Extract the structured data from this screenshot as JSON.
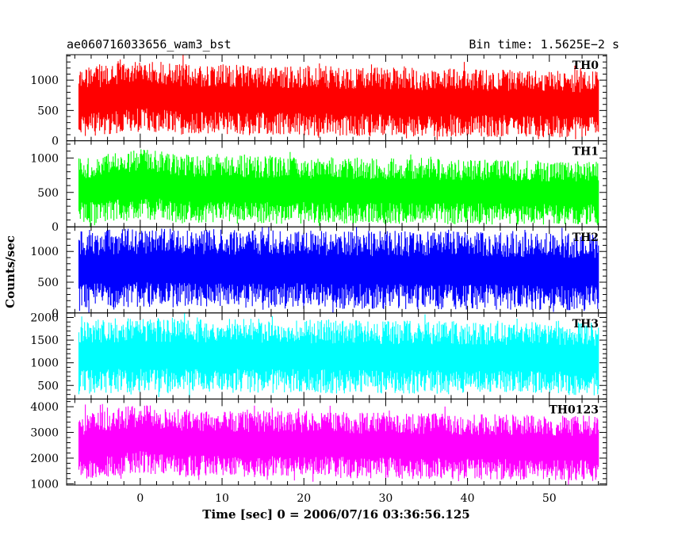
{
  "chart_data": {
    "type": "line",
    "title": "ae060716033656_wam3_bst",
    "subtitle": "Bin time: 1.5625E−2 s",
    "xlabel": "Time [sec] 0 = 2006/07/16 03:36:56.125",
    "ylabel": "Counts/sec",
    "xlim": [
      -9,
      57
    ],
    "x_ticks": [
      0,
      10,
      20,
      30,
      40,
      50
    ],
    "x_data_range": [
      -7.5,
      56
    ],
    "grid": false,
    "legend": "none",
    "panels": [
      {
        "name": "TH0",
        "color": "#ff0000",
        "ylim": [
          0,
          1420
        ],
        "y_ticks": [
          0,
          500,
          1000
        ],
        "profile": [
          {
            "x": -7.5,
            "low": 60,
            "high": 1200
          },
          {
            "x": 0,
            "low": 150,
            "high": 1380
          },
          {
            "x": 5,
            "low": 100,
            "high": 1280
          },
          {
            "x": 56,
            "low": 50,
            "high": 1150
          }
        ]
      },
      {
        "name": "TH1",
        "color": "#00ff00",
        "ylim": [
          0,
          1250
        ],
        "y_ticks": [
          0,
          500,
          1000
        ],
        "profile": [
          {
            "x": -7.5,
            "low": 40,
            "high": 1000
          },
          {
            "x": 0,
            "low": 100,
            "high": 1150
          },
          {
            "x": 5,
            "low": 50,
            "high": 1050
          },
          {
            "x": 56,
            "low": 30,
            "high": 950
          }
        ]
      },
      {
        "name": "TH2",
        "color": "#0000ff",
        "ylim": [
          0,
          1400
        ],
        "y_ticks": [
          0,
          500,
          1000
        ],
        "profile": [
          {
            "x": -7.5,
            "low": 50,
            "high": 1350
          },
          {
            "x": 0,
            "low": 80,
            "high": 1380
          },
          {
            "x": 56,
            "low": 40,
            "high": 1300
          }
        ]
      },
      {
        "name": "TH3",
        "color": "#00ffff",
        "ylim": [
          200,
          2100
        ],
        "y_ticks": [
          500,
          1000,
          1500,
          2000
        ],
        "profile": [
          {
            "x": -7.5,
            "low": 300,
            "high": 1950
          },
          {
            "x": 0,
            "low": 350,
            "high": 2000
          },
          {
            "x": 56,
            "low": 280,
            "high": 1900
          }
        ]
      },
      {
        "name": "TH0123",
        "color": "#ff00ff",
        "ylim": [
          950,
          4300
        ],
        "y_ticks": [
          1000,
          2000,
          3000,
          4000
        ],
        "profile": [
          {
            "x": -7.5,
            "low": 1150,
            "high": 3700
          },
          {
            "x": 0,
            "low": 1400,
            "high": 4100
          },
          {
            "x": 5,
            "low": 1300,
            "high": 3900
          },
          {
            "x": 56,
            "low": 1100,
            "high": 3650
          }
        ]
      }
    ]
  }
}
